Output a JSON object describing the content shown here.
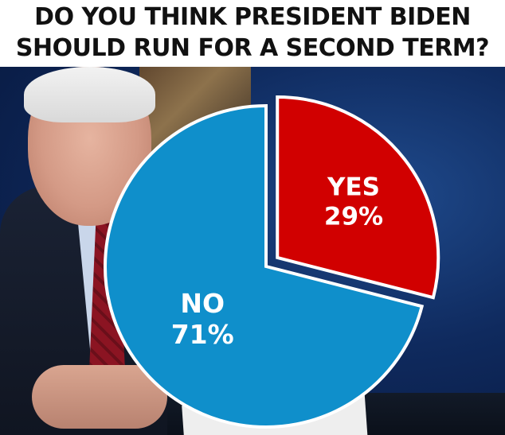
{
  "title": {
    "line1": "DO YOU THINK PRESIDENT BIDEN",
    "line2": "SHOULD RUN FOR A SECOND TERM?"
  },
  "chart_data": {
    "type": "pie",
    "categories": [
      "YES",
      "NO"
    ],
    "values": [
      29,
      71
    ],
    "labels": [
      "29%",
      "71%"
    ],
    "colors": [
      "#d10000",
      "#0f8fcb"
    ],
    "slice_border_color": "#ffffff",
    "legend": "none"
  }
}
